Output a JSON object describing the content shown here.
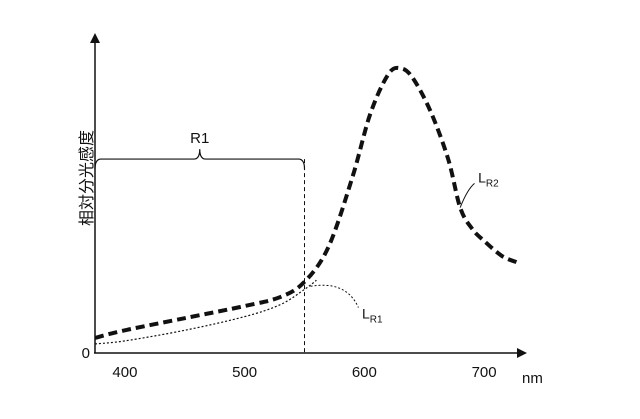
{
  "chart_data": {
    "type": "line",
    "title": "",
    "xlabel": "nm",
    "ylabel": "相対分光感度",
    "xlim": [
      375,
      730
    ],
    "ylim": [
      0,
      100
    ],
    "x_ticks": [
      400,
      500,
      600,
      700
    ],
    "y_ticks": [
      0
    ],
    "grid": false,
    "legend": "none",
    "series": [
      {
        "name": "LR2",
        "label_main": "L",
        "label_sub": "R2",
        "style": "thick-dashed",
        "x": [
          375,
          400,
          450,
          500,
          530,
          550,
          570,
          590,
          605,
          620,
          630,
          640,
          655,
          670,
          680,
          690,
          700,
          715,
          727
        ],
        "y": [
          5,
          7.5,
          11.5,
          15.5,
          18.5,
          23.5,
          35,
          58,
          79,
          92,
          94,
          91,
          80,
          64,
          48,
          41,
          37,
          32,
          30
        ]
      },
      {
        "name": "LR1",
        "label_main": "L",
        "label_sub": "R1",
        "style": "thin-dotted",
        "x": [
          375,
          400,
          450,
          500,
          530,
          550,
          560
        ],
        "y": [
          3,
          4,
          7.5,
          12,
          16,
          21,
          24
        ]
      }
    ],
    "annotations": [
      {
        "id": "R1",
        "text": "R1",
        "type": "range-brace",
        "x_start": 375,
        "x_end": 550,
        "y_level": 64
      }
    ],
    "vertical_marker_x": 550
  }
}
